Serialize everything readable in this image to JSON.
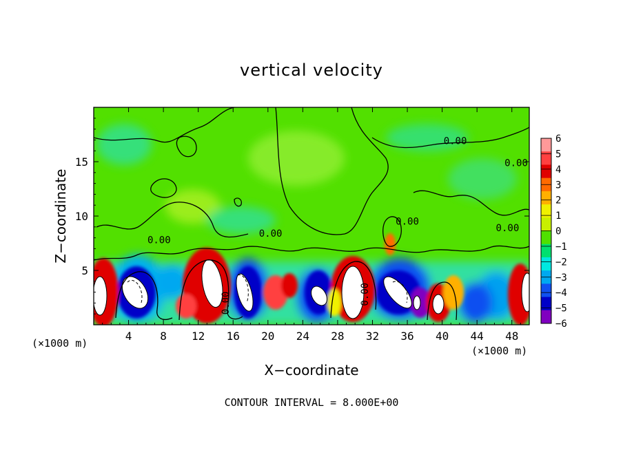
{
  "chart_data": {
    "type": "heatmap",
    "title": "vertical velocity",
    "xlabel": "X−coordinate",
    "ylabel": "Z−coordinate",
    "x_unit_left": "(×1000 m)",
    "x_unit_right": "(×1000 m)",
    "xlim": [
      0,
      50
    ],
    "ylim": [
      0,
      20
    ],
    "xticks": [
      4,
      8,
      12,
      16,
      20,
      24,
      28,
      32,
      36,
      40,
      44,
      48
    ],
    "yticks": [
      5,
      10,
      15
    ],
    "colorbar": {
      "ticks": [
        6,
        5,
        4,
        3,
        2,
        1,
        0,
        -1,
        -2,
        -3,
        -4,
        -5,
        -6
      ],
      "labels": [
        "6",
        "5",
        "4",
        "3",
        "2",
        "1",
        "0",
        "−1",
        "−2",
        "−3",
        "−4",
        "−5",
        "−6"
      ],
      "colors": [
        "#ff9999",
        "#ff4040",
        "#e00000",
        "#ff6a00",
        "#ffb000",
        "#f0f000",
        "#c8f000",
        "#50e000",
        "#00e070",
        "#00e8e0",
        "#00a8f0",
        "#1050f0",
        "#0000c8",
        "#8000c0"
      ]
    },
    "contour_labels": [
      {
        "text": "0.00",
        "x": 41.5,
        "y": 16.6
      },
      {
        "text": "0.00",
        "x": 48.5,
        "y": 14.6
      },
      {
        "text": "0.00",
        "x": 7.5,
        "y": 7.5
      },
      {
        "text": "0.00",
        "x": 20.3,
        "y": 8.1
      },
      {
        "text": "0.00",
        "x": 36.0,
        "y": 9.2
      },
      {
        "text": "0.00",
        "x": 47.5,
        "y": 8.6
      },
      {
        "text": "0.00",
        "x": 15.5,
        "y": 2.0
      },
      {
        "text": "0.00",
        "x": 31.5,
        "y": 2.8
      }
    ],
    "contour_interval_text": "CONTOUR INTERVAL =   8.000E+00"
  }
}
